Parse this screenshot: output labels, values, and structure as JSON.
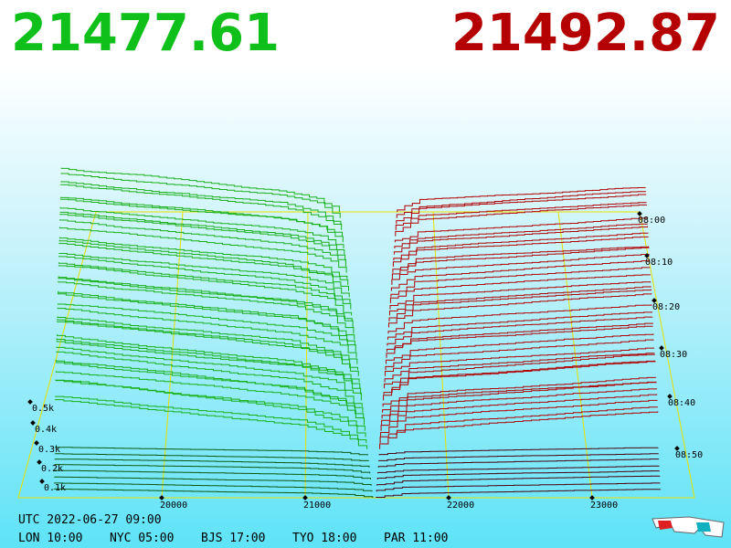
{
  "prices": {
    "bid": "21477.61",
    "ask": "21492.87"
  },
  "price_axis": {
    "ticks": [
      "20000",
      "21000",
      "22000",
      "23000"
    ]
  },
  "depth_axis": {
    "ticks": [
      "0.5k",
      "0.4k",
      "0.3k",
      "0.2k",
      "0.1k"
    ]
  },
  "time_axis": {
    "ticks": [
      "08:00",
      "08:10",
      "08:20",
      "08:30",
      "08:40",
      "08:50"
    ]
  },
  "footer": {
    "utc": "UTC 2022-06-27 09:00",
    "zones": [
      "LON 10:00",
      "NYC 05:00",
      "BJS 17:00",
      "TYO 18:00",
      "PAR 11:00"
    ]
  }
}
